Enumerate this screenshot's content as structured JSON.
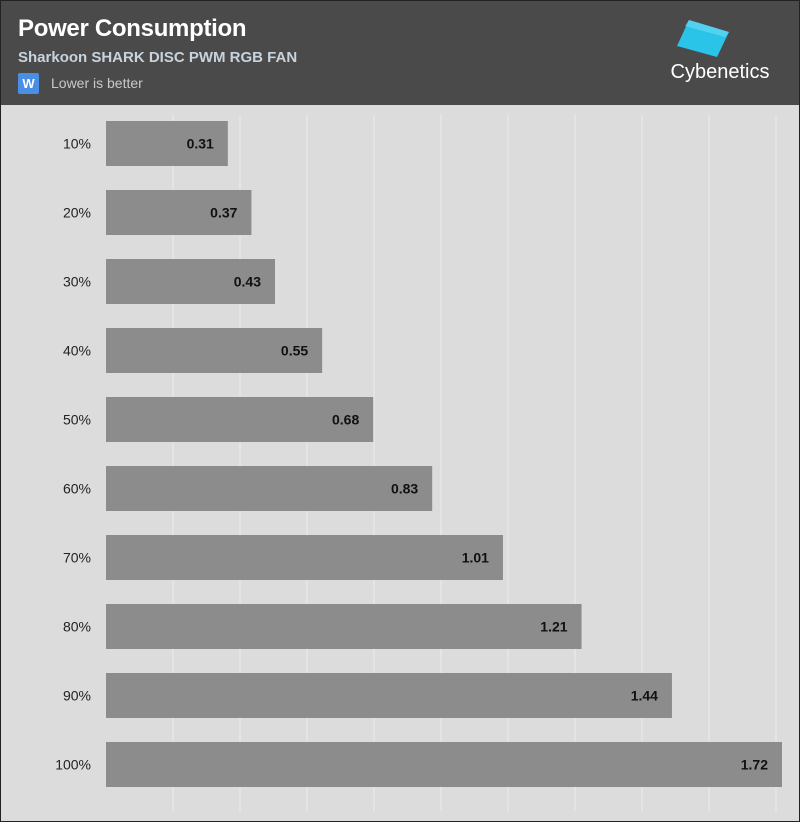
{
  "header": {
    "title": "Power Consumption",
    "subtitle": "Sharkoon SHARK DISC PWM RGB FAN",
    "legend_symbol": "W",
    "legend_text": "Lower is better",
    "legend_color": "#4a8fe6"
  },
  "logo": {
    "icon": "cybenetics-cube-icon",
    "text": "Cybenetics",
    "color": "#29c4e8"
  },
  "chart_data": {
    "type": "bar",
    "orientation": "horizontal",
    "categories": [
      "10%",
      "20%",
      "30%",
      "40%",
      "50%",
      "60%",
      "70%",
      "80%",
      "90%",
      "100%"
    ],
    "values": [
      0.31,
      0.37,
      0.43,
      0.55,
      0.68,
      0.83,
      1.01,
      1.21,
      1.44,
      1.72
    ],
    "xlim": [
      0,
      1.72
    ],
    "grid": true,
    "bar_color": "#8c8c8c",
    "background_color": "#dcdcdc"
  }
}
